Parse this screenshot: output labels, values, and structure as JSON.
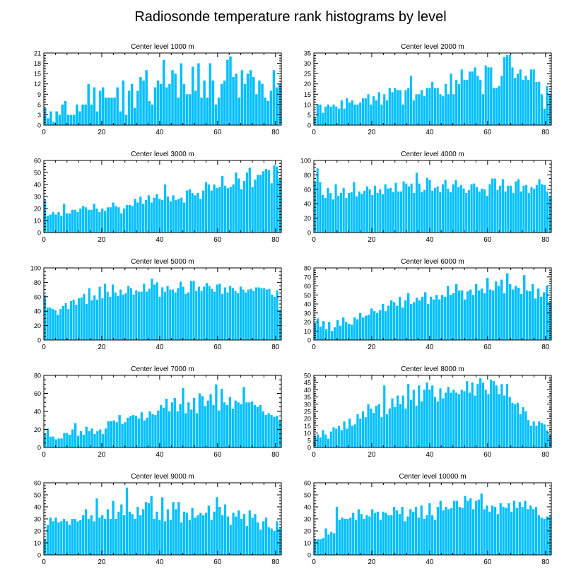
{
  "figure": {
    "title": "Radiosonde temperature rank histograms by level"
  },
  "colors": {
    "bar": "#00BFFF",
    "axis": "#000000",
    "background": "#ffffff"
  },
  "chart_data": [
    {
      "type": "bar",
      "title": "Center level 1000 m",
      "xlabel": "",
      "ylabel": "",
      "xlim": [
        0,
        82
      ],
      "ylim": [
        0,
        21
      ],
      "xticks": [
        0,
        20,
        40,
        60,
        80
      ],
      "yticks": [
        0,
        3,
        6,
        9,
        12,
        15,
        18,
        21
      ],
      "values": [
        5,
        2,
        4,
        1,
        4,
        3,
        6,
        7,
        3,
        3,
        3,
        6,
        4,
        6,
        6,
        12,
        6,
        11,
        4,
        10,
        11,
        8,
        8,
        8,
        8,
        11,
        4,
        13,
        3,
        10,
        12,
        5,
        10,
        14,
        13,
        16,
        7,
        6,
        11,
        13,
        12,
        19,
        11,
        12,
        16,
        15,
        8,
        18,
        12,
        9,
        9,
        17,
        10,
        18,
        8,
        13,
        8,
        18,
        13,
        6,
        8,
        12,
        13,
        19,
        20,
        14,
        15,
        8,
        16,
        12,
        15,
        16,
        14,
        9,
        13,
        12,
        8,
        7,
        10,
        16,
        11,
        12
      ]
    },
    {
      "type": "bar",
      "title": "Center level 2000 m",
      "xlabel": "",
      "ylabel": "",
      "xlim": [
        0,
        82
      ],
      "ylim": [
        0,
        35
      ],
      "xticks": [
        0,
        20,
        40,
        60,
        80
      ],
      "yticks": [
        0,
        5,
        10,
        15,
        20,
        25,
        30,
        35
      ],
      "values": [
        4,
        10,
        10,
        6,
        9,
        10,
        9,
        10,
        9,
        8,
        12,
        8,
        13,
        11,
        12,
        10,
        10,
        11,
        13,
        13,
        15,
        10,
        14,
        12,
        16,
        10,
        15,
        12,
        18,
        16,
        18,
        17,
        17,
        10,
        17,
        18,
        24,
        12,
        15,
        15,
        17,
        14,
        18,
        18,
        21,
        18,
        18,
        15,
        14,
        20,
        15,
        25,
        15,
        22,
        20,
        27,
        22,
        22,
        26,
        26,
        28,
        24,
        22,
        15,
        29,
        28,
        28,
        18,
        18,
        19,
        24,
        33,
        34,
        34,
        28,
        23,
        25,
        27,
        22,
        24,
        22,
        27,
        27,
        21,
        21,
        15,
        8,
        19,
        15
      ]
    },
    {
      "type": "bar",
      "title": "Center level 3000 m",
      "xlabel": "",
      "ylabel": "",
      "xlim": [
        0,
        82
      ],
      "ylim": [
        0,
        60
      ],
      "xticks": [
        0,
        20,
        40,
        60,
        80
      ],
      "yticks": [
        0,
        10,
        20,
        30,
        40,
        50,
        60
      ],
      "values": [
        27,
        14,
        15,
        17,
        15,
        17,
        14,
        24,
        16,
        16,
        19,
        19,
        17,
        20,
        22,
        21,
        19,
        19,
        24,
        20,
        17,
        20,
        18,
        21,
        21,
        25,
        22,
        21,
        16,
        20,
        23,
        23,
        22,
        28,
        25,
        30,
        24,
        27,
        31,
        25,
        29,
        32,
        28,
        27,
        40,
        30,
        26,
        31,
        27,
        28,
        29,
        25,
        35,
        36,
        33,
        31,
        33,
        28,
        35,
        42,
        40,
        35,
        40,
        37,
        38,
        47,
        39,
        37,
        38,
        40,
        50,
        45,
        36,
        43,
        50,
        54,
        38,
        44,
        48,
        48,
        51,
        53,
        52,
        41,
        56,
        55,
        45
      ]
    },
    {
      "type": "bar",
      "title": "Center level 4000 m",
      "xlabel": "",
      "ylabel": "",
      "xlim": [
        0,
        82
      ],
      "ylim": [
        0,
        100
      ],
      "xticks": [
        0,
        20,
        40,
        60,
        80
      ],
      "yticks": [
        0,
        20,
        40,
        60,
        80,
        100
      ],
      "values": [
        71,
        89,
        70,
        52,
        48,
        62,
        55,
        46,
        67,
        51,
        55,
        62,
        48,
        55,
        56,
        70,
        50,
        57,
        54,
        58,
        64,
        60,
        52,
        65,
        55,
        60,
        53,
        67,
        61,
        62,
        56,
        69,
        57,
        57,
        71,
        68,
        64,
        68,
        55,
        83,
        68,
        56,
        59,
        76,
        73,
        58,
        62,
        64,
        56,
        67,
        73,
        61,
        56,
        67,
        73,
        63,
        66,
        61,
        55,
        59,
        67,
        68,
        63,
        57,
        61,
        60,
        51,
        67,
        75,
        75,
        59,
        65,
        74,
        57,
        65,
        65,
        55,
        71,
        74,
        57,
        65,
        66,
        55,
        63,
        61,
        66,
        74,
        67,
        66,
        57,
        50
      ]
    },
    {
      "type": "bar",
      "title": "Center level 5000 m",
      "xlabel": "",
      "ylabel": "",
      "xlim": [
        0,
        82
      ],
      "ylim": [
        0,
        100
      ],
      "xticks": [
        0,
        20,
        40,
        60,
        80
      ],
      "yticks": [
        0,
        20,
        40,
        60,
        80,
        100
      ],
      "values": [
        62,
        45,
        45,
        43,
        41,
        35,
        43,
        47,
        51,
        43,
        54,
        56,
        49,
        58,
        59,
        64,
        50,
        72,
        55,
        62,
        56,
        74,
        58,
        78,
        67,
        60,
        77,
        66,
        61,
        70,
        63,
        65,
        75,
        72,
        63,
        69,
        67,
        67,
        78,
        67,
        71,
        85,
        77,
        80,
        60,
        73,
        67,
        75,
        70,
        70,
        66,
        72,
        81,
        74,
        64,
        66,
        82,
        82,
        68,
        74,
        68,
        74,
        79,
        75,
        71,
        67,
        77,
        78,
        64,
        73,
        66,
        75,
        72,
        68,
        65,
        74,
        70,
        66,
        70,
        71,
        68,
        73,
        73,
        72,
        72,
        70,
        71,
        63,
        60,
        69,
        42
      ]
    },
    {
      "type": "bar",
      "title": "Center level 6000 m",
      "xlabel": "",
      "ylabel": "",
      "xlim": [
        0,
        82
      ],
      "ylim": [
        0,
        80
      ],
      "xticks": [
        0,
        20,
        40,
        60,
        80
      ],
      "yticks": [
        0,
        10,
        20,
        30,
        40,
        50,
        60,
        70,
        80
      ],
      "values": [
        19,
        24,
        15,
        21,
        12,
        20,
        10,
        14,
        22,
        16,
        25,
        20,
        18,
        17,
        25,
        23,
        30,
        25,
        27,
        28,
        35,
        32,
        30,
        33,
        40,
        32,
        38,
        44,
        42,
        38,
        48,
        36,
        44,
        52,
        40,
        42,
        47,
        44,
        48,
        53,
        40,
        48,
        45,
        50,
        45,
        50,
        48,
        60,
        50,
        52,
        62,
        55,
        55,
        45,
        54,
        56,
        50,
        62,
        55,
        57,
        52,
        69,
        56,
        55,
        65,
        60,
        67,
        52,
        74,
        62,
        56,
        60,
        58,
        51,
        72,
        55,
        54,
        62,
        46,
        57,
        48,
        53,
        60,
        42
      ]
    },
    {
      "type": "bar",
      "title": "Center level 7000 m",
      "xlabel": "",
      "ylabel": "",
      "xlim": [
        0,
        82
      ],
      "ylim": [
        0,
        80
      ],
      "xticks": [
        0,
        20,
        40,
        60,
        80
      ],
      "yticks": [
        0,
        20,
        40,
        60,
        80
      ],
      "values": [
        15,
        21,
        12,
        12,
        9,
        10,
        10,
        16,
        16,
        14,
        20,
        27,
        13,
        18,
        14,
        23,
        18,
        21,
        15,
        18,
        20,
        15,
        21,
        29,
        29,
        30,
        28,
        36,
        26,
        28,
        33,
        35,
        36,
        35,
        32,
        39,
        30,
        33,
        40,
        37,
        36,
        41,
        47,
        44,
        54,
        40,
        50,
        55,
        40,
        48,
        66,
        38,
        50,
        42,
        55,
        38,
        60,
        57,
        46,
        52,
        59,
        47,
        70,
        41,
        65,
        50,
        47,
        56,
        43,
        52,
        50,
        48,
        67,
        50,
        50,
        51,
        47,
        45,
        47,
        40,
        36,
        38,
        36,
        34,
        35,
        30
      ]
    },
    {
      "type": "bar",
      "title": "Center level 8000 m",
      "xlabel": "",
      "ylabel": "",
      "xlim": [
        0,
        82
      ],
      "ylim": [
        0,
        50
      ],
      "xticks": [
        0,
        20,
        40,
        60,
        80
      ],
      "yticks": [
        0,
        5,
        10,
        15,
        20,
        25,
        30,
        35,
        40,
        45,
        50
      ],
      "values": [
        7,
        9,
        7,
        12,
        9,
        6,
        11,
        14,
        13,
        15,
        12,
        18,
        13,
        20,
        15,
        16,
        23,
        20,
        25,
        21,
        30,
        27,
        24,
        29,
        30,
        21,
        43,
        23,
        27,
        34,
        28,
        36,
        30,
        36,
        27,
        44,
        33,
        40,
        29,
        43,
        32,
        40,
        45,
        40,
        43,
        35,
        32,
        41,
        34,
        38,
        42,
        38,
        40,
        38,
        37,
        40,
        39,
        46,
        38,
        45,
        36,
        44,
        48,
        45,
        40,
        37,
        47,
        46,
        43,
        37,
        44,
        36,
        44,
        35,
        31,
        30,
        31,
        23,
        28,
        25,
        19,
        15,
        18,
        15,
        18,
        17,
        16,
        12,
        9
      ]
    },
    {
      "type": "bar",
      "title": "Center level 9000 m",
      "xlabel": "",
      "ylabel": "",
      "xlim": [
        0,
        82
      ],
      "ylim": [
        0,
        60
      ],
      "xticks": [
        0,
        20,
        40,
        60,
        80
      ],
      "yticks": [
        0,
        10,
        20,
        30,
        40,
        50,
        60
      ],
      "values": [
        13,
        25,
        31,
        28,
        31,
        27,
        28,
        30,
        28,
        25,
        30,
        30,
        28,
        29,
        33,
        38,
        30,
        33,
        28,
        47,
        31,
        33,
        30,
        38,
        30,
        45,
        30,
        36,
        42,
        33,
        56,
        36,
        34,
        30,
        40,
        33,
        38,
        44,
        43,
        49,
        30,
        36,
        29,
        48,
        28,
        38,
        29,
        44,
        38,
        44,
        27,
        36,
        35,
        29,
        39,
        31,
        33,
        35,
        33,
        35,
        41,
        29,
        36,
        48,
        40,
        33,
        42,
        32,
        25,
        35,
        32,
        37,
        30,
        34,
        24,
        37,
        31,
        34,
        27,
        21,
        28,
        31,
        23,
        22,
        20,
        28,
        22
      ]
    },
    {
      "type": "bar",
      "title": "Center level 10000 m",
      "xlabel": "",
      "ylabel": "",
      "xlim": [
        0,
        82
      ],
      "ylim": [
        0,
        60
      ],
      "xticks": [
        0,
        20,
        40,
        60,
        80
      ],
      "yticks": [
        0,
        10,
        20,
        30,
        40,
        50,
        60
      ],
      "values": [
        13,
        13,
        13,
        14,
        22,
        17,
        19,
        18,
        40,
        29,
        31,
        30,
        30,
        31,
        35,
        29,
        38,
        34,
        30,
        33,
        32,
        38,
        35,
        36,
        29,
        36,
        35,
        33,
        33,
        40,
        37,
        34,
        40,
        28,
        32,
        38,
        36,
        40,
        31,
        41,
        30,
        33,
        43,
        33,
        29,
        40,
        45,
        37,
        40,
        38,
        39,
        45,
        45,
        40,
        39,
        49,
        45,
        47,
        38,
        45,
        46,
        51,
        38,
        41,
        36,
        41,
        40,
        34,
        43,
        40,
        39,
        43,
        36,
        45,
        39,
        44,
        40,
        45,
        38,
        41,
        38,
        40,
        33,
        31,
        30,
        32,
        32
      ]
    }
  ]
}
